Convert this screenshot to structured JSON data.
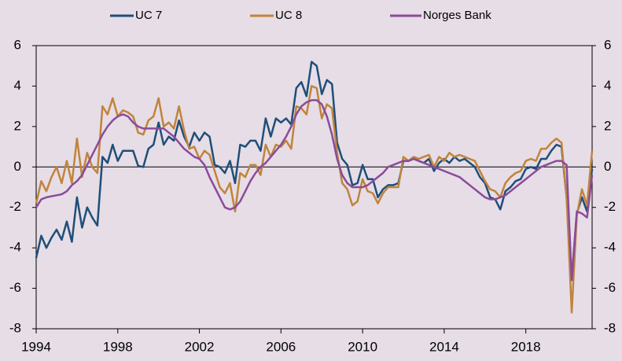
{
  "chart_data": {
    "type": "line",
    "x": [
      1994,
      1994.25,
      1994.5,
      1994.75,
      1995,
      1995.25,
      1995.5,
      1995.75,
      1996,
      1996.25,
      1996.5,
      1996.75,
      1997,
      1997.25,
      1997.5,
      1997.75,
      1998,
      1998.25,
      1998.5,
      1998.75,
      1999,
      1999.25,
      1999.5,
      1999.75,
      2000,
      2000.25,
      2000.5,
      2000.75,
      2001,
      2001.25,
      2001.5,
      2001.75,
      2002,
      2002.25,
      2002.5,
      2002.75,
      2003,
      2003.25,
      2003.5,
      2003.75,
      2004,
      2004.25,
      2004.5,
      2004.75,
      2005,
      2005.25,
      2005.5,
      2005.75,
      2006,
      2006.25,
      2006.5,
      2006.75,
      2007,
      2007.25,
      2007.5,
      2007.75,
      2008,
      2008.25,
      2008.5,
      2008.75,
      2009,
      2009.25,
      2009.5,
      2009.75,
      2010,
      2010.25,
      2010.5,
      2010.75,
      2011,
      2011.25,
      2011.5,
      2011.75,
      2012,
      2012.25,
      2012.5,
      2012.75,
      2013,
      2013.25,
      2013.5,
      2013.75,
      2014,
      2014.25,
      2014.5,
      2014.75,
      2015,
      2015.25,
      2015.5,
      2015.75,
      2016,
      2016.25,
      2016.5,
      2016.75,
      2017,
      2017.25,
      2017.5,
      2017.75,
      2018,
      2018.25,
      2018.5,
      2018.75,
      2019,
      2019.25,
      2019.5,
      2019.75,
      2020,
      2020.25,
      2020.5,
      2020.75,
      2021,
      2021.25
    ],
    "series": [
      {
        "name": "UC 7",
        "color": "#1f4e79",
        "values": [
          -4.5,
          -3.4,
          -4.0,
          -3.5,
          -3.1,
          -3.6,
          -2.7,
          -3.7,
          -1.5,
          -3.0,
          -2.0,
          -2.5,
          -2.9,
          0.5,
          0.2,
          1.1,
          0.3,
          0.8,
          0.8,
          0.8,
          0.05,
          0.0,
          0.9,
          1.1,
          2.2,
          1.1,
          1.5,
          1.3,
          2.3,
          1.5,
          1.0,
          1.7,
          1.3,
          1.7,
          1.5,
          0.1,
          0.0,
          -0.3,
          0.3,
          -0.8,
          1.1,
          1.0,
          1.3,
          1.3,
          0.8,
          2.4,
          1.5,
          2.4,
          2.2,
          2.4,
          2.1,
          3.9,
          4.2,
          3.5,
          5.2,
          5.0,
          3.6,
          4.3,
          4.1,
          1.2,
          0.4,
          0.1,
          -0.9,
          -0.8,
          0.1,
          -0.6,
          -0.6,
          -1.5,
          -1.1,
          -0.9,
          -0.9,
          -0.8,
          0.3,
          0.3,
          0.4,
          0.3,
          0.2,
          0.4,
          -0.2,
          0.2,
          0.4,
          0.2,
          0.5,
          0.3,
          0.4,
          0.2,
          0.0,
          -0.5,
          -0.8,
          -1.5,
          -1.6,
          -2.1,
          -1.2,
          -1.0,
          -0.7,
          -0.6,
          -0.1,
          0.0,
          -0.1,
          0.4,
          0.4,
          0.8,
          1.1,
          1.0,
          -1.5,
          -5.5,
          -2.3,
          -1.5,
          -2.2,
          -0.1
        ]
      },
      {
        "name": "UC 8",
        "color": "#c0843c",
        "values": [
          -1.8,
          -0.7,
          -1.2,
          -0.5,
          0.0,
          -0.8,
          0.3,
          -0.8,
          1.4,
          -0.5,
          0.7,
          0.0,
          -0.3,
          3.0,
          2.6,
          3.4,
          2.5,
          2.8,
          2.7,
          2.5,
          1.7,
          1.6,
          2.3,
          2.5,
          3.4,
          2.0,
          2.2,
          1.9,
          3.0,
          1.8,
          0.9,
          1.0,
          0.4,
          0.8,
          0.6,
          -0.2,
          -1.0,
          -1.3,
          -0.8,
          -2.2,
          -0.3,
          -0.5,
          0.1,
          0.1,
          -0.4,
          1.1,
          0.5,
          1.1,
          1.0,
          1.3,
          0.9,
          3.0,
          2.9,
          2.6,
          4.0,
          3.9,
          2.4,
          3.1,
          2.9,
          0.7,
          -0.8,
          -1.1,
          -1.9,
          -1.7,
          -0.6,
          -1.2,
          -1.3,
          -1.8,
          -1.3,
          -1.0,
          -1.0,
          -1.0,
          0.5,
          0.3,
          0.5,
          0.4,
          0.5,
          0.6,
          0.0,
          0.5,
          0.3,
          0.7,
          0.5,
          0.6,
          0.5,
          0.4,
          0.3,
          -0.2,
          -0.7,
          -1.1,
          -1.2,
          -1.5,
          -0.8,
          -0.5,
          -0.3,
          -0.2,
          0.3,
          0.4,
          0.3,
          0.9,
          0.9,
          1.2,
          1.4,
          1.2,
          -1.5,
          -7.2,
          -2.4,
          -1.1,
          -1.9,
          0.8
        ]
      },
      {
        "name": "Norges Bank",
        "color": "#8b4b9a",
        "values": [
          -2.0,
          -1.6,
          -1.5,
          -1.45,
          -1.4,
          -1.35,
          -1.2,
          -0.9,
          -0.7,
          -0.4,
          0.1,
          0.6,
          1.1,
          1.6,
          2.0,
          2.3,
          2.5,
          2.6,
          2.5,
          2.2,
          2.0,
          1.9,
          1.9,
          1.9,
          1.9,
          1.9,
          1.7,
          1.5,
          1.2,
          0.9,
          0.7,
          0.5,
          0.4,
          0.1,
          -0.5,
          -1.0,
          -1.5,
          -2.0,
          -2.1,
          -2.0,
          -1.7,
          -1.2,
          -0.7,
          -0.3,
          0.0,
          0.2,
          0.5,
          0.8,
          1.1,
          1.5,
          2.0,
          2.6,
          3.0,
          3.2,
          3.3,
          3.3,
          3.1,
          2.5,
          1.6,
          0.4,
          -0.4,
          -0.8,
          -1.0,
          -1.0,
          -1.0,
          -0.9,
          -0.7,
          -0.5,
          -0.3,
          0.0,
          0.1,
          0.2,
          0.3,
          0.3,
          0.4,
          0.3,
          0.2,
          0.1,
          0.0,
          -0.1,
          -0.2,
          -0.3,
          -0.4,
          -0.5,
          -0.7,
          -0.9,
          -1.1,
          -1.3,
          -1.5,
          -1.6,
          -1.6,
          -1.5,
          -1.4,
          -1.2,
          -1.0,
          -0.8,
          -0.6,
          -0.4,
          -0.2,
          0.0,
          0.1,
          0.2,
          0.3,
          0.3,
          0.1,
          -5.6,
          -2.2,
          -2.3,
          -2.5,
          -0.4
        ]
      }
    ],
    "xlim": [
      1994,
      2021.25
    ],
    "xticks": [
      1994,
      1998,
      2002,
      2006,
      2010,
      2014,
      2018
    ],
    "ylim": [
      -8,
      6
    ],
    "yticks": [
      -8,
      -6,
      -4,
      -2,
      0,
      2,
      4,
      6
    ],
    "y2lim": [
      -8,
      6
    ],
    "y2ticks": [
      -8,
      -6,
      -4,
      -2,
      0,
      2,
      4,
      6
    ],
    "legend": "top"
  }
}
